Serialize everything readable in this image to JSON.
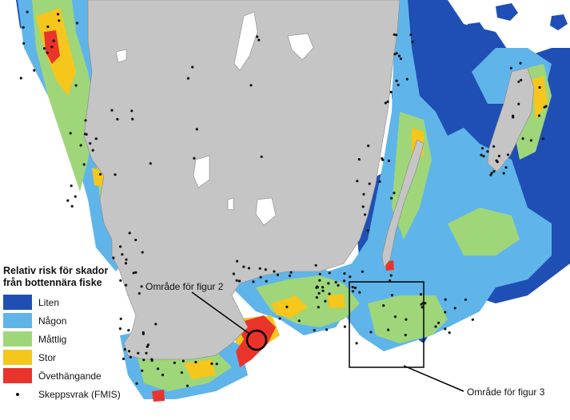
{
  "legend": {
    "title_line1": "Relativ risk för skador",
    "title_line2": "från bottennära fiske",
    "items": [
      {
        "label": "Liten",
        "color": "#1f4fb4"
      },
      {
        "label": "Någon",
        "color": "#5fb5ea"
      },
      {
        "label": "Måttlig",
        "color": "#9fd67a"
      },
      {
        "label": "Stor",
        "color": "#f5c61c"
      },
      {
        "label": "Övethängande",
        "color": "#e8342a"
      }
    ],
    "wreck_label": "Skeppsvrak (FMIS)"
  },
  "callouts": {
    "figure2": "Område för figur 2",
    "figure3": "Område för figur 3"
  },
  "colors": {
    "land": "#c5c5c5",
    "lake": "#ffffff",
    "sea_background": "#ffffff",
    "wreck_dot": "#111111"
  }
}
